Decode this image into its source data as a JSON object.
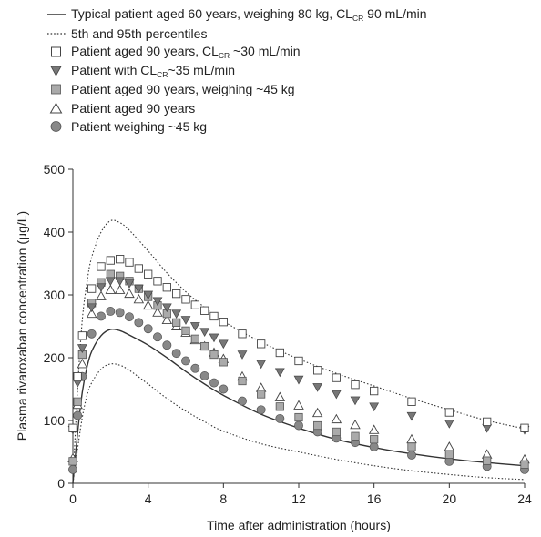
{
  "legend": {
    "typical": {
      "pre": "Typical patient aged 60 years, weighing 80 kg, CL",
      "sub": "CR",
      "post": " 90 mL/min"
    },
    "percentiles": "5th and 95th percentiles",
    "aged90_crcl30": {
      "pre": "Patient aged 90 years, CL",
      "sub": "CR",
      "post": " ~30 mL/min"
    },
    "crcl35": {
      "pre": "Patient with CL",
      "sub": "CR",
      "post": "~35 mL/min"
    },
    "aged90_45kg": "Patient aged 90 years, weighing ~45 kg",
    "aged90": "Patient aged 90 years",
    "weigh45": "Patient weighing ~45 kg"
  },
  "chart_data": {
    "type": "line",
    "xlabel": "Time after administration (hours)",
    "ylabel": "Plasma rivaroxaban concentration (μg/L)",
    "xlim": [
      0,
      24
    ],
    "ylim": [
      0,
      500
    ],
    "xticks": [
      0,
      4,
      8,
      12,
      16,
      20,
      24
    ],
    "yticks": [
      0,
      100,
      200,
      300,
      400,
      500
    ],
    "grid": false,
    "legend_position": "top",
    "colors": {
      "line": "#333333",
      "marker_fill": "#888888",
      "marker_stroke": "#444444"
    },
    "series": [
      {
        "key": "typical",
        "style": "solid-line",
        "x": [
          0,
          0.25,
          0.5,
          0.75,
          1,
          1.5,
          2,
          2.5,
          3,
          4,
          5,
          6,
          7,
          8,
          10,
          12,
          14,
          16,
          18,
          20,
          22,
          24
        ],
        "y": [
          0,
          80,
          145,
          185,
          210,
          235,
          245,
          243,
          236,
          220,
          200,
          178,
          158,
          140,
          110,
          88,
          70,
          57,
          47,
          39,
          33,
          28
        ]
      },
      {
        "key": "p95",
        "style": "dotted-line",
        "x": [
          0,
          0.25,
          0.5,
          0.75,
          1,
          1.5,
          2,
          2.5,
          3,
          4,
          5,
          6,
          7,
          8,
          10,
          12,
          14,
          16,
          18,
          20,
          22,
          24
        ],
        "y": [
          0,
          150,
          260,
          320,
          360,
          400,
          418,
          415,
          403,
          370,
          335,
          305,
          280,
          258,
          225,
          198,
          175,
          155,
          135,
          117,
          100,
          87
        ]
      },
      {
        "key": "p5",
        "style": "dotted-line",
        "x": [
          0,
          0.25,
          0.5,
          0.75,
          1,
          1.5,
          2,
          2.5,
          3,
          4,
          5,
          6,
          7,
          8,
          10,
          12,
          14,
          16,
          18,
          20,
          22,
          24
        ],
        "y": [
          0,
          55,
          105,
          140,
          160,
          182,
          190,
          188,
          180,
          158,
          135,
          115,
          98,
          83,
          63,
          50,
          38,
          28,
          20,
          14,
          9,
          6
        ]
      },
      {
        "key": "aged90_crcl30",
        "marker": "open-square",
        "x": [
          0,
          0.25,
          0.5,
          1,
          1.5,
          2,
          2.5,
          3,
          3.5,
          4,
          4.5,
          5,
          5.5,
          6,
          6.5,
          7,
          7.5,
          8,
          9,
          10,
          11,
          12,
          13,
          14,
          15,
          16,
          18,
          20,
          22,
          24
        ],
        "y": [
          88,
          170,
          235,
          310,
          345,
          355,
          357,
          352,
          342,
          333,
          322,
          312,
          302,
          293,
          284,
          275,
          266,
          257,
          238,
          222,
          208,
          195,
          180,
          168,
          157,
          147,
          130,
          113,
          98,
          88
        ]
      },
      {
        "key": "crcl35",
        "marker": "filled-down-triangle",
        "x": [
          0,
          0.25,
          0.5,
          1,
          1.5,
          2,
          2.5,
          3,
          3.5,
          4,
          4.5,
          5,
          5.5,
          6,
          6.5,
          7,
          7.5,
          8,
          9,
          10,
          11,
          12,
          13,
          14,
          15,
          16,
          18,
          20,
          22,
          24
        ],
        "y": [
          85,
          160,
          215,
          280,
          312,
          322,
          322,
          318,
          310,
          300,
          290,
          280,
          270,
          260,
          250,
          241,
          232,
          222,
          205,
          190,
          177,
          165,
          153,
          142,
          132,
          122,
          107,
          95,
          88,
          85
        ]
      },
      {
        "key": "aged90_45kg",
        "marker": "filled-square",
        "x": [
          0,
          0.25,
          0.5,
          1,
          1.5,
          2,
          2.5,
          3,
          3.5,
          4,
          4.5,
          5,
          5.5,
          6,
          6.5,
          7,
          7.5,
          8,
          9,
          10,
          11,
          12,
          13,
          14,
          15,
          16,
          18,
          20,
          22,
          24
        ],
        "y": [
          35,
          130,
          205,
          287,
          320,
          333,
          330,
          322,
          310,
          297,
          283,
          270,
          256,
          243,
          230,
          218,
          205,
          193,
          163,
          142,
          122,
          105,
          92,
          82,
          75,
          70,
          58,
          46,
          36,
          30
        ]
      },
      {
        "key": "aged90",
        "marker": "open-triangle",
        "x": [
          0,
          0.25,
          0.5,
          1,
          1.5,
          2,
          2.5,
          3,
          3.5,
          4,
          4.5,
          5,
          5.5,
          6,
          6.5,
          7,
          7.5,
          8,
          9,
          10,
          11,
          12,
          13,
          14,
          15,
          16,
          18,
          20,
          22,
          24
        ],
        "y": [
          40,
          125,
          190,
          270,
          298,
          308,
          308,
          302,
          293,
          283,
          272,
          260,
          250,
          240,
          228,
          218,
          208,
          198,
          170,
          152,
          137,
          124,
          112,
          102,
          93,
          85,
          70,
          58,
          46,
          38
        ]
      },
      {
        "key": "weigh45",
        "marker": "filled-circle",
        "x": [
          0,
          0.25,
          0.5,
          1,
          1.5,
          2,
          2.5,
          3,
          3.5,
          4,
          4.5,
          5,
          5.5,
          6,
          6.5,
          7,
          7.5,
          8,
          9,
          10,
          11,
          12,
          13,
          14,
          15,
          16,
          18,
          20,
          22,
          24
        ],
        "y": [
          22,
          108,
          170,
          238,
          266,
          274,
          272,
          265,
          256,
          246,
          233,
          220,
          207,
          195,
          183,
          171,
          160,
          150,
          131,
          117,
          103,
          92,
          82,
          72,
          65,
          58,
          45,
          35,
          27,
          22
        ]
      }
    ]
  }
}
